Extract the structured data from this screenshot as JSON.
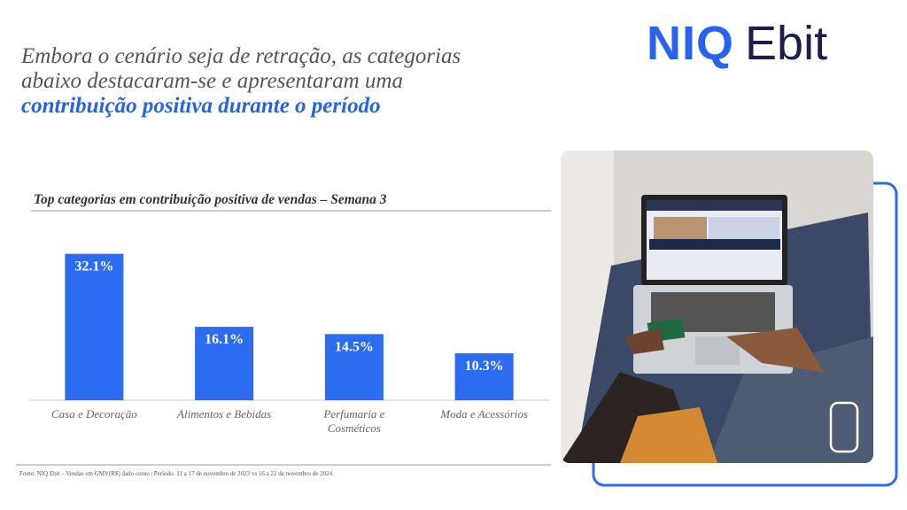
{
  "headline": {
    "lines": [
      "Embora o cenário seja de retração, as categorias",
      "abaixo destacaram-se e apresentaram uma"
    ],
    "highlight": "contribuição positiva durante o período"
  },
  "logo": {
    "brand": "NIQ",
    "product": "Ebit"
  },
  "chart_data": {
    "type": "bar",
    "title": "Top categorias em contribuição positiva de vendas – Semana 3",
    "categories": [
      "Casa e Decoração",
      "Alimentos e Bebidas",
      "Perfumaria e Cosméticos",
      "Moda e Acessórios"
    ],
    "values": [
      32.1,
      16.1,
      14.5,
      10.3
    ],
    "value_labels": [
      "32.1%",
      "16.1%",
      "14.5%",
      "10.3%"
    ],
    "color": "#2b6cf0",
    "ylim": [
      0,
      40
    ]
  },
  "footnote": "Fonte: NIQ Ebit – Vendas em GMV(R$) dado censo | Período: 11 a 17 de novembro de 2023 vs 16 a 22 de novembro de 2024."
}
